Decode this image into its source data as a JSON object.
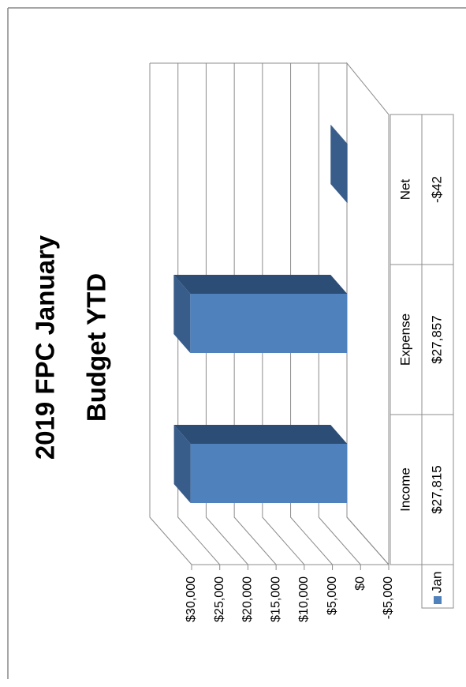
{
  "chart_data": {
    "type": "bar",
    "title": [
      "2019 FPC January",
      "Budget YTD"
    ],
    "categories": [
      "Income",
      "Expense",
      "Net"
    ],
    "series": [
      {
        "name": "Jan",
        "color": "#4f81bd",
        "values": [
          27815,
          27857,
          -42
        ],
        "value_labels": [
          "$27,815",
          "$27,857",
          "-$42"
        ]
      }
    ],
    "ylim": [
      -5000,
      30000
    ],
    "yticks": [
      {
        "value": -5000,
        "label": "-$5,000"
      },
      {
        "value": 0,
        "label": "$0"
      },
      {
        "value": 5000,
        "label": "$5,000"
      },
      {
        "value": 10000,
        "label": "$10,000"
      },
      {
        "value": 15000,
        "label": "$15,000"
      },
      {
        "value": 20000,
        "label": "$20,000"
      },
      {
        "value": 25000,
        "label": "$25,000"
      },
      {
        "value": 30000,
        "label": "$30,000"
      }
    ],
    "grid": true
  }
}
